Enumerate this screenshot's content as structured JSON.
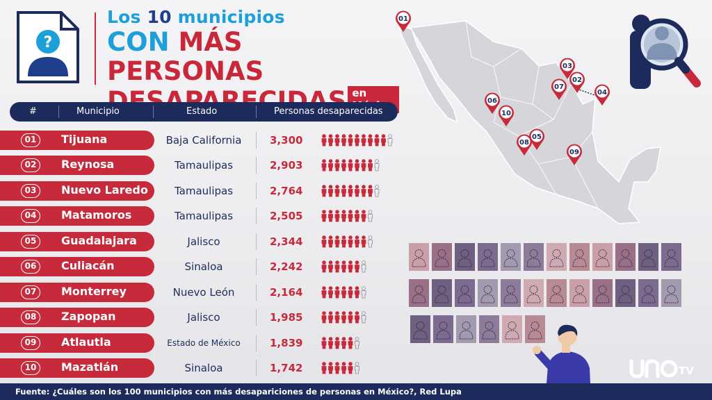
{
  "title": {
    "line1_pre": "Los ",
    "line1_num": "10",
    "line1_post": " municipios",
    "line2_a": "CON ",
    "line2_b": "MÁS PERSONAS",
    "line3": "DESAPARECIDAS",
    "badge": "en México"
  },
  "table": {
    "headers": [
      "#",
      "Municipio",
      "Estado",
      "Personas desaparecidas"
    ]
  },
  "chart_data": {
    "type": "table",
    "columns": [
      "#",
      "Municipio",
      "Estado",
      "Personas desaparecidas"
    ],
    "rows": [
      {
        "rank": "01",
        "municipio": "Tijuana",
        "estado": "Baja California",
        "valor_text": "3,300",
        "valor": 3300
      },
      {
        "rank": "02",
        "municipio": "Reynosa",
        "estado": "Tamaulipas",
        "valor_text": "2,903",
        "valor": 2903
      },
      {
        "rank": "03",
        "municipio": "Nuevo Laredo",
        "estado": "Tamaulipas",
        "valor_text": "2,764",
        "valor": 2764
      },
      {
        "rank": "04",
        "municipio": "Matamoros",
        "estado": "Tamaulipas",
        "valor_text": "2,505",
        "valor": 2505
      },
      {
        "rank": "05",
        "municipio": "Guadalajara",
        "estado": "Jalisco",
        "valor_text": "2,344",
        "valor": 2344
      },
      {
        "rank": "06",
        "municipio": "Culiacán",
        "estado": "Sinaloa",
        "valor_text": "2,242",
        "valor": 2242
      },
      {
        "rank": "07",
        "municipio": "Monterrey",
        "estado": "Nuevo León",
        "valor_text": "2,164",
        "valor": 2164
      },
      {
        "rank": "08",
        "municipio": "Zapopan",
        "estado": "Jalisco",
        "valor_text": "1,985",
        "valor": 1985
      },
      {
        "rank": "09",
        "municipio": "Atlautla",
        "estado": "Estado de México",
        "valor_text": "1,839",
        "valor": 1839
      },
      {
        "rank": "10",
        "municipio": "Mazatlán",
        "estado": "Sinaloa",
        "valor_text": "1,742",
        "valor": 1742
      }
    ],
    "icon_scale_max": 3300,
    "icon_scale_count": 10
  },
  "map_pins": [
    "01",
    "02",
    "03",
    "04",
    "05",
    "06",
    "07",
    "08",
    "09",
    "10"
  ],
  "logo_text": "TV",
  "footer": "Fuente: ¿Cuáles son los 100 municipios con más desapariciones de personas en México?, Red Lupa",
  "colors": {
    "navy": "#1d2b5c",
    "red": "#c62a3b",
    "blue": "#1d9fd9"
  }
}
